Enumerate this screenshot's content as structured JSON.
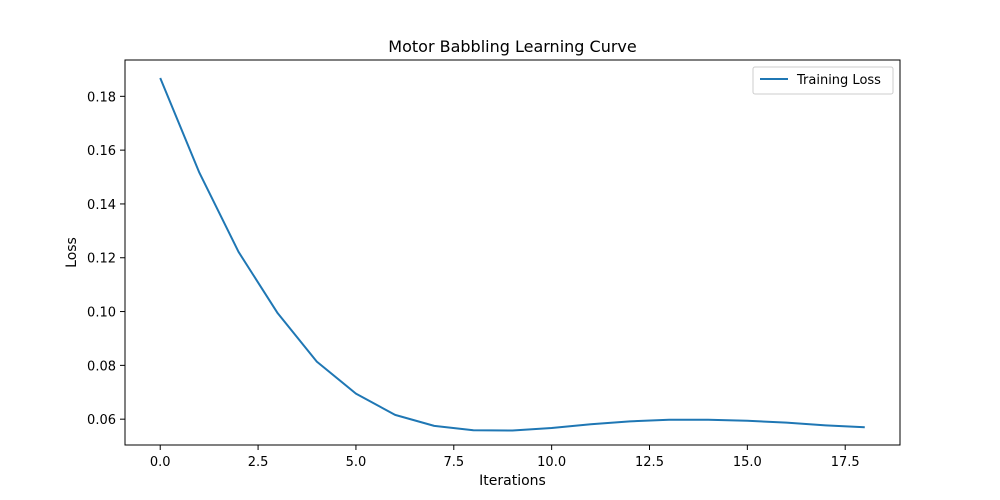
{
  "chart_data": {
    "type": "line",
    "title": "Motor Babbling Learning Curve",
    "xlabel": "Iterations",
    "ylabel": "Loss",
    "xlim": [
      -0.9,
      18.9
    ],
    "ylim": [
      0.0504,
      0.1935
    ],
    "xticks": [
      0.0,
      2.5,
      5.0,
      7.5,
      10.0,
      12.5,
      15.0,
      17.5
    ],
    "xtick_labels": [
      "0.0",
      "2.5",
      "5.0",
      "7.5",
      "10.0",
      "12.5",
      "15.0",
      "17.5"
    ],
    "yticks": [
      0.06,
      0.08,
      0.1,
      0.12,
      0.14,
      0.16,
      0.18
    ],
    "ytick_labels": [
      "0.06",
      "0.08",
      "0.10",
      "0.12",
      "0.14",
      "0.16",
      "0.18"
    ],
    "grid": false,
    "legend_position": "top-right",
    "x": [
      0,
      1,
      2,
      3,
      4,
      5,
      6,
      7,
      8,
      9,
      10,
      11,
      12,
      13,
      14,
      15,
      16,
      17,
      18
    ],
    "series": [
      {
        "name": "Training Loss",
        "color": "#1f77b4",
        "values": [
          0.1868,
          0.1516,
          0.1222,
          0.0994,
          0.0814,
          0.0695,
          0.0616,
          0.0575,
          0.0559,
          0.0558,
          0.0567,
          0.0581,
          0.0592,
          0.0598,
          0.0598,
          0.0594,
          0.0587,
          0.0577,
          0.057
        ]
      }
    ]
  }
}
